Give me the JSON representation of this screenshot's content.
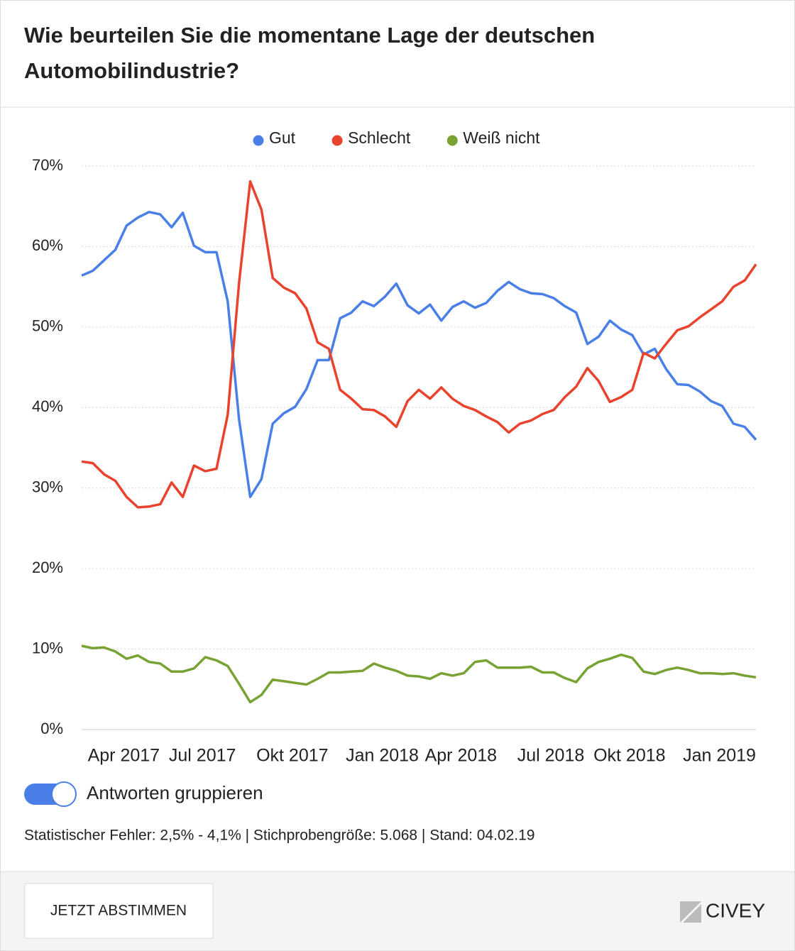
{
  "chart_data": {
    "type": "line",
    "title": "Wie beurteilen Sie die momentane Lage der deutschen Automobilindustrie?",
    "categories": [
      null,
      null,
      null,
      null,
      "Apr 2017",
      null,
      null,
      null,
      null,
      null,
      null,
      "Jul 2017",
      null,
      null,
      null,
      null,
      null,
      null,
      null,
      "Okt 2017",
      null,
      null,
      null,
      null,
      null,
      null,
      null,
      "Jan 2018",
      null,
      null,
      null,
      null,
      null,
      null,
      "Apr 2018",
      null,
      null,
      null,
      null,
      null,
      null,
      null,
      "Jul 2018",
      null,
      null,
      null,
      null,
      null,
      null,
      "Okt 2018",
      null,
      null,
      null,
      null,
      null,
      null,
      null,
      "Jan 2019",
      null,
      null,
      null
    ],
    "series": [
      {
        "name": "Gut",
        "color": "#4a7fe8",
        "values": [
          56.4,
          57.0,
          58.3,
          59.6,
          62.6,
          63.6,
          64.3,
          64.0,
          62.4,
          64.2,
          60.1,
          59.3,
          59.3,
          53.2,
          38.6,
          28.9,
          31.1,
          38.0,
          39.3,
          40.1,
          42.3,
          45.9,
          45.9,
          51.1,
          51.8,
          53.2,
          52.6,
          53.8,
          55.4,
          52.7,
          51.7,
          52.8,
          50.8,
          52.5,
          53.2,
          52.4,
          53.0,
          54.5,
          55.6,
          54.7,
          54.2,
          54.1,
          53.6,
          52.6,
          51.8,
          47.9,
          48.8,
          50.8,
          49.7,
          49.0,
          46.6,
          47.3,
          44.8,
          42.9,
          42.8,
          42.0,
          40.8,
          40.2,
          38.0,
          37.6,
          36.0
        ]
      },
      {
        "name": "Schlecht",
        "color": "#e8432d",
        "values": [
          33.3,
          33.1,
          31.7,
          30.9,
          28.9,
          27.6,
          27.7,
          28.0,
          30.7,
          28.9,
          32.8,
          32.1,
          32.4,
          39.1,
          55.4,
          68.1,
          64.6,
          56.1,
          54.9,
          54.2,
          52.3,
          48.1,
          47.3,
          42.2,
          41.1,
          39.8,
          39.7,
          38.9,
          37.6,
          40.8,
          42.2,
          41.1,
          42.5,
          41.1,
          40.2,
          39.7,
          38.9,
          38.2,
          36.9,
          38.0,
          38.4,
          39.2,
          39.7,
          41.3,
          42.6,
          44.9,
          43.3,
          40.7,
          41.3,
          42.2,
          46.8,
          46.1,
          47.9,
          49.6,
          50.1,
          51.2,
          52.2,
          53.2,
          55.0,
          55.8,
          57.8
        ]
      },
      {
        "name": "Weiß nicht",
        "color": "#78a334",
        "values": [
          10.4,
          10.1,
          10.2,
          9.7,
          8.8,
          9.2,
          8.4,
          8.2,
          7.2,
          7.2,
          7.6,
          9.0,
          8.6,
          7.9,
          5.7,
          3.4,
          4.3,
          6.2,
          6.0,
          5.8,
          5.6,
          6.3,
          7.1,
          7.1,
          7.2,
          7.3,
          8.2,
          7.7,
          7.3,
          6.7,
          6.6,
          6.3,
          7.0,
          6.7,
          7.0,
          8.4,
          8.6,
          7.7,
          7.7,
          7.7,
          7.8,
          7.1,
          7.1,
          6.4,
          5.9,
          7.6,
          8.4,
          8.8,
          9.3,
          8.9,
          7.2,
          6.9,
          7.4,
          7.7,
          7.4,
          7.0,
          7.0,
          6.9,
          7.0,
          6.7,
          6.5
        ]
      }
    ],
    "ylim": [
      0,
      70
    ],
    "yticks": [
      {
        "value": 0,
        "label": "0%"
      },
      {
        "value": 10,
        "label": "10%"
      },
      {
        "value": 20,
        "label": "20%"
      },
      {
        "value": 30,
        "label": "30%"
      },
      {
        "value": 40,
        "label": "40%"
      },
      {
        "value": 50,
        "label": "50%"
      },
      {
        "value": 60,
        "label": "60%"
      },
      {
        "value": 70,
        "label": "70%"
      }
    ],
    "grid": true,
    "legend": "top"
  },
  "toggle_label": "Antworten gruppieren",
  "footnote": "Statistischer Fehler: 2,5% - 4,1% | Stichprobengröße: 5.068 | Stand: 04.02.19",
  "button": "JETZT ABSTIMMEN",
  "logo": "CIVEY"
}
